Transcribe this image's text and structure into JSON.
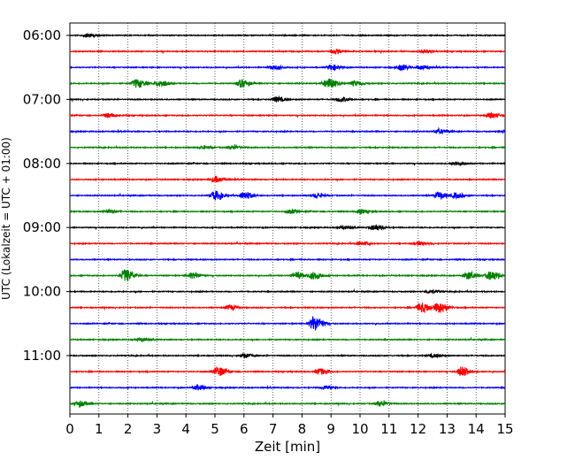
{
  "chart_data": {
    "type": "line",
    "title": "",
    "xlabel": "Zeit  [min]",
    "ylabel": "UTC (Lokalzeit = UTC + 01:00)",
    "xlim": [
      0,
      15
    ],
    "x_ticks": [
      "0",
      "1",
      "2",
      "3",
      "4",
      "5",
      "6",
      "7",
      "8",
      "9",
      "10",
      "11",
      "12",
      "13",
      "14",
      "15"
    ],
    "y_tick_labels": [
      "06:00",
      "07:00",
      "08:00",
      "09:00",
      "10:00",
      "11:00"
    ],
    "trace_interval_min": 15,
    "grid": "vertical dotted lines at each minute",
    "colors_cycle": [
      "#000000",
      "#ff0000",
      "#0000ff",
      "#008000"
    ],
    "series": [
      {
        "start": "06:00",
        "color": "#000000",
        "events": [
          [
            0.6,
            0.25
          ]
        ]
      },
      {
        "start": "06:15",
        "color": "#ff0000",
        "events": [
          [
            9.1,
            0.3
          ],
          [
            12.2,
            0.3
          ]
        ]
      },
      {
        "start": "06:30",
        "color": "#0000ff",
        "events": [
          [
            7.0,
            0.35
          ],
          [
            9.0,
            0.45
          ],
          [
            11.4,
            0.45
          ],
          [
            12.1,
            0.35
          ]
        ]
      },
      {
        "start": "06:45",
        "color": "#008000",
        "events": [
          [
            2.3,
            0.7
          ],
          [
            3.1,
            0.5
          ],
          [
            5.9,
            0.6
          ],
          [
            8.9,
            0.8
          ],
          [
            9.8,
            0.4
          ]
        ]
      },
      {
        "start": "07:00",
        "color": "#000000",
        "events": [
          [
            7.1,
            0.4
          ],
          [
            9.3,
            0.35
          ]
        ]
      },
      {
        "start": "07:15",
        "color": "#ff0000",
        "events": [
          [
            1.3,
            0.35
          ],
          [
            14.5,
            0.45
          ]
        ]
      },
      {
        "start": "07:30",
        "color": "#0000ff",
        "events": [
          [
            12.7,
            0.3
          ],
          [
            15.0,
            0.3
          ]
        ]
      },
      {
        "start": "07:45",
        "color": "#008000",
        "events": [
          [
            5.6,
            0.3
          ],
          [
            4.6,
            0.25
          ]
        ]
      },
      {
        "start": "08:00",
        "color": "#000000",
        "events": [
          [
            13.3,
            0.3
          ]
        ]
      },
      {
        "start": "08:15",
        "color": "#ff0000",
        "events": [
          [
            5.0,
            0.45
          ]
        ]
      },
      {
        "start": "08:30",
        "color": "#0000ff",
        "events": [
          [
            5.0,
            0.7
          ],
          [
            6.0,
            0.6
          ],
          [
            8.5,
            0.35
          ],
          [
            12.7,
            0.55
          ],
          [
            13.3,
            0.4
          ]
        ]
      },
      {
        "start": "08:45",
        "color": "#008000",
        "events": [
          [
            1.3,
            0.3
          ],
          [
            7.6,
            0.3
          ],
          [
            10.0,
            0.3
          ]
        ]
      },
      {
        "start": "09:00",
        "color": "#000000",
        "events": [
          [
            10.5,
            0.45
          ],
          [
            9.4,
            0.25
          ]
        ]
      },
      {
        "start": "09:15",
        "color": "#ff0000",
        "events": [
          [
            10.0,
            0.3
          ],
          [
            12.0,
            0.3
          ]
        ]
      },
      {
        "start": "09:30",
        "color": "#0000ff",
        "events": []
      },
      {
        "start": "09:45",
        "color": "#008000",
        "events": [
          [
            1.9,
            1.0
          ],
          [
            4.2,
            0.45
          ],
          [
            7.8,
            0.5
          ],
          [
            8.4,
            0.55
          ],
          [
            13.7,
            0.6
          ],
          [
            14.5,
            0.75
          ]
        ]
      },
      {
        "start": "10:00",
        "color": "#000000",
        "events": [
          [
            12.4,
            0.3
          ]
        ]
      },
      {
        "start": "10:15",
        "color": "#ff0000",
        "events": [
          [
            5.5,
            0.4
          ],
          [
            12.1,
            0.8
          ],
          [
            12.7,
            0.85
          ]
        ]
      },
      {
        "start": "10:30",
        "color": "#0000ff",
        "events": [
          [
            8.4,
            1.2
          ]
        ]
      },
      {
        "start": "10:45",
        "color": "#008000",
        "events": [
          [
            2.4,
            0.3
          ]
        ]
      },
      {
        "start": "11:00",
        "color": "#000000",
        "events": [
          [
            6.0,
            0.3
          ],
          [
            12.5,
            0.25
          ]
        ]
      },
      {
        "start": "11:15",
        "color": "#ff0000",
        "events": [
          [
            5.1,
            0.75
          ],
          [
            8.6,
            0.5
          ],
          [
            13.5,
            0.8
          ]
        ]
      },
      {
        "start": "11:30",
        "color": "#0000ff",
        "events": [
          [
            4.4,
            0.4
          ],
          [
            8.8,
            0.3
          ]
        ]
      },
      {
        "start": "11:45",
        "color": "#008000",
        "events": [
          [
            0.3,
            0.45
          ],
          [
            10.7,
            0.4
          ]
        ]
      }
    ]
  }
}
